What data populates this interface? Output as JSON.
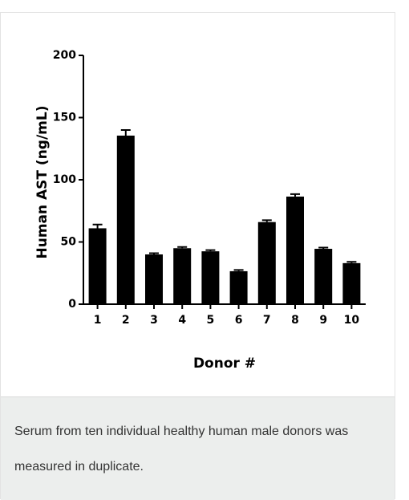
{
  "chart_data": {
    "type": "bar",
    "y_label": "Human AST (ng/mL)",
    "x_label": "Donor #",
    "categories": [
      "1",
      "2",
      "3",
      "4",
      "5",
      "6",
      "7",
      "8",
      "9",
      "10"
    ],
    "values": [
      61,
      135.5,
      40,
      45,
      42.5,
      26.5,
      66,
      86.5,
      44.5,
      33
    ],
    "errors": [
      3,
      4.5,
      1,
      1,
      1,
      1,
      1.5,
      2,
      1,
      1
    ],
    "color": "#000000",
    "ylim": [
      0,
      200
    ],
    "yticks": [
      0,
      50,
      100,
      150,
      200
    ]
  },
  "caption": "Serum from ten individual healthy human male donors was measured in duplicate."
}
